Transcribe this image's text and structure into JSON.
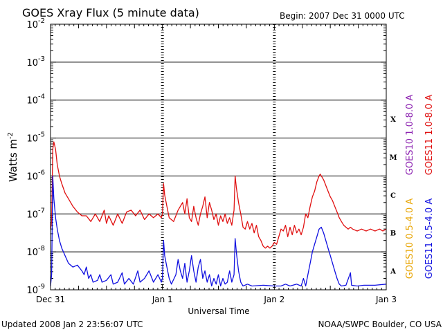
{
  "chart_data": {
    "type": "line",
    "title": "GOES Xray Flux (5 minute data)",
    "begin_label": "Begin:  2007 Dec 31 0000 UTC",
    "xlabel": "Universal Time",
    "ylabel": "Watts m",
    "ylabel_sup": "-2",
    "yscale": "log",
    "ylim": [
      1e-09,
      0.01
    ],
    "xlim_days": [
      0,
      3
    ],
    "x_ticks": [
      {
        "day": 0,
        "label": "Dec 31"
      },
      {
        "day": 1,
        "label": "Jan 1"
      },
      {
        "day": 2,
        "label": "Jan 2"
      },
      {
        "day": 3,
        "label": "Jan 3"
      }
    ],
    "y_ticks": [
      {
        "exp": -2,
        "label": "10",
        "sup": "-2"
      },
      {
        "exp": -3,
        "label": "10",
        "sup": "-3"
      },
      {
        "exp": -4,
        "label": "10",
        "sup": "-4"
      },
      {
        "exp": -5,
        "label": "10",
        "sup": "-5"
      },
      {
        "exp": -6,
        "label": "10",
        "sup": "-6"
      },
      {
        "exp": -7,
        "label": "10",
        "sup": "-7"
      },
      {
        "exp": -8,
        "label": "10",
        "sup": "-8"
      },
      {
        "exp": -9,
        "label": "10",
        "sup": "-9"
      }
    ],
    "flare_classes": [
      {
        "label": "X",
        "exp": -4
      },
      {
        "label": "M",
        "exp": -5
      },
      {
        "label": "C",
        "exp": -6
      },
      {
        "label": "B",
        "exp": -7
      },
      {
        "label": "A",
        "exp": -8
      }
    ],
    "legend": [
      {
        "name": "GOES10 1.0-8.0 A",
        "color": "#8b20b0"
      },
      {
        "name": "GOES11 1.0-8.0 A",
        "color": "#e01010"
      },
      {
        "name": "GOES10 0.5-4.0 A",
        "color": "#e8a400"
      },
      {
        "name": "GOES11 0.5-4.0 A",
        "color": "#1010e0"
      }
    ],
    "series": [
      {
        "name": "GOES11 1.0-8.0 A",
        "color": "#e01010",
        "points": [
          [
            0.0,
            -7.4
          ],
          [
            0.01,
            -7.2
          ],
          [
            0.02,
            -5.3
          ],
          [
            0.03,
            -5.1
          ],
          [
            0.045,
            -5.3
          ],
          [
            0.06,
            -5.7
          ],
          [
            0.08,
            -6.0
          ],
          [
            0.1,
            -6.2
          ],
          [
            0.13,
            -6.45
          ],
          [
            0.16,
            -6.6
          ],
          [
            0.2,
            -6.8
          ],
          [
            0.24,
            -6.95
          ],
          [
            0.28,
            -7.05
          ],
          [
            0.32,
            -7.05
          ],
          [
            0.36,
            -7.2
          ],
          [
            0.4,
            -7.0
          ],
          [
            0.44,
            -7.2
          ],
          [
            0.48,
            -6.9
          ],
          [
            0.5,
            -7.25
          ],
          [
            0.52,
            -7.05
          ],
          [
            0.56,
            -7.3
          ],
          [
            0.6,
            -7.0
          ],
          [
            0.64,
            -7.25
          ],
          [
            0.68,
            -6.95
          ],
          [
            0.72,
            -6.9
          ],
          [
            0.76,
            -7.05
          ],
          [
            0.8,
            -6.9
          ],
          [
            0.84,
            -7.15
          ],
          [
            0.88,
            -7.0
          ],
          [
            0.92,
            -7.1
          ],
          [
            0.96,
            -7.0
          ],
          [
            0.99,
            -7.1
          ],
          [
            1.0,
            -7.0
          ],
          [
            1.01,
            -6.2
          ],
          [
            1.02,
            -6.5
          ],
          [
            1.04,
            -6.8
          ],
          [
            1.06,
            -7.1
          ],
          [
            1.1,
            -7.2
          ],
          [
            1.14,
            -6.9
          ],
          [
            1.18,
            -6.7
          ],
          [
            1.2,
            -7.0
          ],
          [
            1.22,
            -6.6
          ],
          [
            1.24,
            -7.1
          ],
          [
            1.26,
            -7.2
          ],
          [
            1.28,
            -6.8
          ],
          [
            1.3,
            -7.1
          ],
          [
            1.32,
            -7.3
          ],
          [
            1.34,
            -7.0
          ],
          [
            1.36,
            -6.8
          ],
          [
            1.38,
            -6.55
          ],
          [
            1.4,
            -7.1
          ],
          [
            1.42,
            -6.7
          ],
          [
            1.44,
            -6.9
          ],
          [
            1.46,
            -7.15
          ],
          [
            1.48,
            -7.0
          ],
          [
            1.5,
            -7.3
          ],
          [
            1.52,
            -7.05
          ],
          [
            1.54,
            -7.2
          ],
          [
            1.56,
            -7.0
          ],
          [
            1.58,
            -7.25
          ],
          [
            1.6,
            -7.1
          ],
          [
            1.62,
            -7.3
          ],
          [
            1.64,
            -6.9
          ],
          [
            1.65,
            -6.0
          ],
          [
            1.66,
            -6.3
          ],
          [
            1.68,
            -6.7
          ],
          [
            1.7,
            -7.0
          ],
          [
            1.72,
            -7.35
          ],
          [
            1.74,
            -7.4
          ],
          [
            1.76,
            -7.2
          ],
          [
            1.78,
            -7.4
          ],
          [
            1.8,
            -7.25
          ],
          [
            1.82,
            -7.5
          ],
          [
            1.84,
            -7.3
          ],
          [
            1.86,
            -7.6
          ],
          [
            1.88,
            -7.7
          ],
          [
            1.9,
            -7.85
          ],
          [
            1.92,
            -7.9
          ],
          [
            1.94,
            -7.85
          ],
          [
            1.96,
            -7.9
          ],
          [
            1.98,
            -7.85
          ],
          [
            2.0,
            -7.75
          ],
          [
            2.02,
            -7.8
          ],
          [
            2.04,
            -7.6
          ],
          [
            2.06,
            -7.4
          ],
          [
            2.08,
            -7.45
          ],
          [
            2.1,
            -7.3
          ],
          [
            2.12,
            -7.6
          ],
          [
            2.14,
            -7.35
          ],
          [
            2.16,
            -7.55
          ],
          [
            2.18,
            -7.3
          ],
          [
            2.2,
            -7.5
          ],
          [
            2.22,
            -7.4
          ],
          [
            2.24,
            -7.55
          ],
          [
            2.26,
            -7.35
          ],
          [
            2.28,
            -7.0
          ],
          [
            2.3,
            -7.1
          ],
          [
            2.32,
            -6.8
          ],
          [
            2.34,
            -6.55
          ],
          [
            2.36,
            -6.4
          ],
          [
            2.38,
            -6.15
          ],
          [
            2.4,
            -6.0
          ],
          [
            2.41,
            -5.95
          ],
          [
            2.42,
            -6.0
          ],
          [
            2.44,
            -6.1
          ],
          [
            2.46,
            -6.25
          ],
          [
            2.48,
            -6.4
          ],
          [
            2.5,
            -6.55
          ],
          [
            2.52,
            -6.65
          ],
          [
            2.54,
            -6.8
          ],
          [
            2.56,
            -6.95
          ],
          [
            2.58,
            -7.1
          ],
          [
            2.6,
            -7.2
          ],
          [
            2.62,
            -7.3
          ],
          [
            2.64,
            -7.35
          ],
          [
            2.66,
            -7.4
          ],
          [
            2.68,
            -7.35
          ],
          [
            2.7,
            -7.4
          ],
          [
            2.74,
            -7.45
          ],
          [
            2.78,
            -7.4
          ],
          [
            2.82,
            -7.45
          ],
          [
            2.86,
            -7.4
          ],
          [
            2.9,
            -7.45
          ],
          [
            2.94,
            -7.4
          ],
          [
            2.97,
            -7.45
          ],
          [
            3.0,
            -7.4
          ]
        ]
      },
      {
        "name": "GOES11 0.5-4.0 A",
        "color": "#1010e0",
        "points": [
          [
            0.0,
            -8.9
          ],
          [
            0.01,
            -8.6
          ],
          [
            0.02,
            -6.0
          ],
          [
            0.03,
            -6.6
          ],
          [
            0.045,
            -7.1
          ],
          [
            0.06,
            -7.4
          ],
          [
            0.08,
            -7.7
          ],
          [
            0.1,
            -7.9
          ],
          [
            0.13,
            -8.1
          ],
          [
            0.16,
            -8.3
          ],
          [
            0.2,
            -8.4
          ],
          [
            0.24,
            -8.35
          ],
          [
            0.28,
            -8.5
          ],
          [
            0.3,
            -8.6
          ],
          [
            0.32,
            -8.4
          ],
          [
            0.34,
            -8.7
          ],
          [
            0.36,
            -8.6
          ],
          [
            0.38,
            -8.8
          ],
          [
            0.42,
            -8.75
          ],
          [
            0.44,
            -8.6
          ],
          [
            0.46,
            -8.8
          ],
          [
            0.5,
            -8.75
          ],
          [
            0.54,
            -8.6
          ],
          [
            0.56,
            -8.85
          ],
          [
            0.6,
            -8.8
          ],
          [
            0.64,
            -8.55
          ],
          [
            0.66,
            -8.85
          ],
          [
            0.7,
            -8.7
          ],
          [
            0.74,
            -8.85
          ],
          [
            0.78,
            -8.5
          ],
          [
            0.8,
            -8.8
          ],
          [
            0.84,
            -8.7
          ],
          [
            0.88,
            -8.5
          ],
          [
            0.92,
            -8.8
          ],
          [
            0.96,
            -8.6
          ],
          [
            0.99,
            -8.8
          ],
          [
            1.0,
            -8.7
          ],
          [
            1.01,
            -7.7
          ],
          [
            1.02,
            -8.1
          ],
          [
            1.04,
            -8.4
          ],
          [
            1.06,
            -8.7
          ],
          [
            1.08,
            -8.85
          ],
          [
            1.12,
            -8.6
          ],
          [
            1.14,
            -8.2
          ],
          [
            1.16,
            -8.5
          ],
          [
            1.18,
            -8.7
          ],
          [
            1.2,
            -8.3
          ],
          [
            1.22,
            -8.8
          ],
          [
            1.24,
            -8.5
          ],
          [
            1.26,
            -8.1
          ],
          [
            1.28,
            -8.5
          ],
          [
            1.3,
            -8.8
          ],
          [
            1.32,
            -8.4
          ],
          [
            1.34,
            -8.2
          ],
          [
            1.36,
            -8.7
          ],
          [
            1.38,
            -8.5
          ],
          [
            1.4,
            -8.8
          ],
          [
            1.42,
            -8.6
          ],
          [
            1.44,
            -8.9
          ],
          [
            1.46,
            -8.7
          ],
          [
            1.48,
            -8.85
          ],
          [
            1.5,
            -8.6
          ],
          [
            1.52,
            -8.9
          ],
          [
            1.54,
            -8.7
          ],
          [
            1.56,
            -8.85
          ],
          [
            1.58,
            -8.8
          ],
          [
            1.6,
            -8.5
          ],
          [
            1.62,
            -8.8
          ],
          [
            1.64,
            -8.6
          ],
          [
            1.65,
            -7.65
          ],
          [
            1.66,
            -8.0
          ],
          [
            1.68,
            -8.5
          ],
          [
            1.7,
            -8.8
          ],
          [
            1.72,
            -8.9
          ],
          [
            1.76,
            -8.85
          ],
          [
            1.8,
            -8.9
          ],
          [
            1.9,
            -8.88
          ],
          [
            2.0,
            -8.9
          ],
          [
            2.06,
            -8.9
          ],
          [
            2.1,
            -8.85
          ],
          [
            2.14,
            -8.9
          ],
          [
            2.2,
            -8.85
          ],
          [
            2.24,
            -8.9
          ],
          [
            2.26,
            -8.7
          ],
          [
            2.28,
            -8.9
          ],
          [
            2.3,
            -8.6
          ],
          [
            2.32,
            -8.3
          ],
          [
            2.34,
            -8.0
          ],
          [
            2.36,
            -7.8
          ],
          [
            2.38,
            -7.6
          ],
          [
            2.4,
            -7.4
          ],
          [
            2.42,
            -7.35
          ],
          [
            2.44,
            -7.5
          ],
          [
            2.46,
            -7.7
          ],
          [
            2.48,
            -7.9
          ],
          [
            2.5,
            -8.1
          ],
          [
            2.52,
            -8.3
          ],
          [
            2.54,
            -8.5
          ],
          [
            2.56,
            -8.7
          ],
          [
            2.58,
            -8.85
          ],
          [
            2.6,
            -8.9
          ],
          [
            2.64,
            -8.88
          ],
          [
            2.68,
            -8.55
          ],
          [
            2.69,
            -8.88
          ],
          [
            2.74,
            -8.9
          ],
          [
            2.8,
            -8.88
          ],
          [
            2.9,
            -8.88
          ],
          [
            3.0,
            -8.85
          ]
        ]
      }
    ]
  },
  "footer": {
    "updated": "Updated 2008 Jan  2 23:56:07 UTC",
    "credit": "NOAA/SWPC Boulder, CO USA"
  }
}
